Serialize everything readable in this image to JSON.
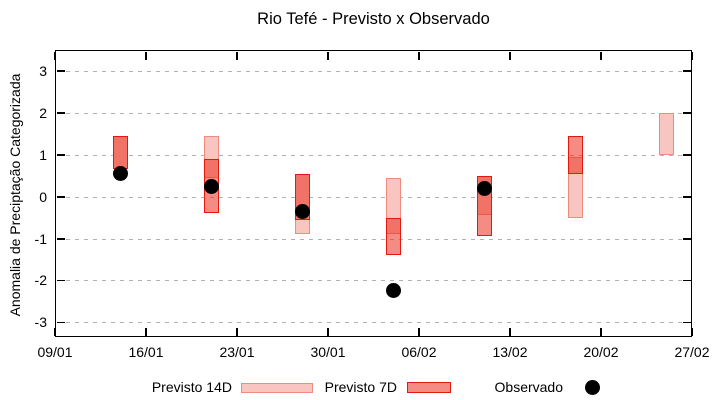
{
  "title": "Rio Tefé - Previsto x Observado",
  "chart_data": {
    "type": "bar",
    "subtype": "forecast-range-boxes-with-observed-points",
    "title": "Rio Tefé - Previsto x Observado",
    "xlabel": "",
    "ylabel": "Anomalia de Preciptação Categorizada",
    "ylim": [
      -3.35,
      3.5
    ],
    "yticks": [
      3,
      2,
      1,
      0,
      -1,
      -2,
      -3
    ],
    "xlim_days": [
      0,
      49
    ],
    "xticks": [
      {
        "day": 0,
        "label": "09/01"
      },
      {
        "day": 7,
        "label": "16/01"
      },
      {
        "day": 14,
        "label": "23/01"
      },
      {
        "day": 21,
        "label": "30/01"
      },
      {
        "day": 28,
        "label": "06/02"
      },
      {
        "day": 35,
        "label": "13/02"
      },
      {
        "day": 42,
        "label": "20/02"
      },
      {
        "day": 49,
        "label": "27/02"
      }
    ],
    "grid": "horizontal-dashed",
    "legend_position": "bottom-center",
    "legend": [
      {
        "label": "Previsto 14D",
        "type": "box",
        "fill": "#f9c5c0",
        "border": "#ef8b7c"
      },
      {
        "label": "Previsto 7D",
        "type": "box",
        "fill": "#f48c83",
        "border": "#e21a0e"
      },
      {
        "label": "Observado",
        "type": "dot",
        "fill": "#000000"
      }
    ],
    "series": [
      {
        "name": "Previsto 14D",
        "unit": "anomaly category range [low, high]",
        "values": [
          [
            0.65,
            1.45
          ],
          [
            0.45,
            1.45
          ],
          [
            -0.9,
            0.55
          ],
          [
            -0.9,
            0.45
          ],
          [
            -0.45,
            0.5
          ],
          [
            -0.5,
            0.95
          ],
          [
            1.0,
            2.0
          ]
        ]
      },
      {
        "name": "Previsto 7D",
        "unit": "anomaly category range [low, high]",
        "values": [
          [
            0.65,
            1.45
          ],
          [
            -0.4,
            0.9
          ],
          [
            -0.55,
            0.55
          ],
          [
            -1.4,
            -0.5
          ],
          [
            -0.95,
            0.5
          ],
          [
            0.55,
            1.45
          ],
          null
        ]
      },
      {
        "name": "Observado",
        "unit": "anomaly category",
        "values": [
          0.55,
          0.25,
          -0.35,
          -2.25,
          0.2,
          null,
          null
        ]
      }
    ],
    "categories": [
      "14/01",
      "21/01",
      "28/01",
      "04/02",
      "11/02",
      "18/02",
      "25/02"
    ],
    "category_days": [
      5,
      12,
      19,
      26,
      33,
      40,
      47
    ],
    "colors": {
      "axis": "#000000",
      "grid": "#b2b2b2",
      "forecast14_fill": "#f9c5c0",
      "forecast14_border": "#ef8b7c",
      "forecast7_fill_alpha": "rgba(235,45,30,0.55)",
      "forecast7_border": "#e21a0e",
      "overlap_fill": "#f17167",
      "observed": "#000000"
    }
  }
}
